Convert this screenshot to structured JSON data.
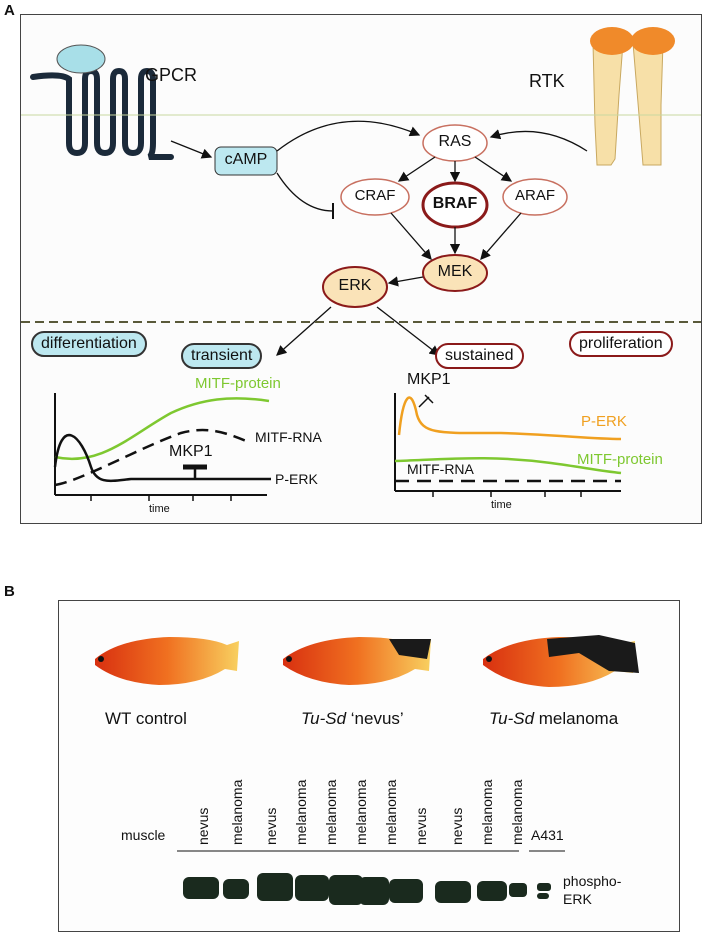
{
  "panelA": {
    "letter": "A",
    "gpcr": "GPCR",
    "rtk": "RTK",
    "camp": "cAMP",
    "ras": "RAS",
    "craf": "CRAF",
    "braf": "BRAF",
    "araf": "ARAF",
    "mek": "MEK",
    "erk": "ERK",
    "differentiation": "differentiation",
    "transient": "transient",
    "sustained": "sustained",
    "proliferation": "proliferation",
    "left_plot": {
      "mitf_protein": "MITF-protein",
      "mitf_rna": "MITF-RNA",
      "mkp1": "MKP1",
      "perk": "P-ERK",
      "xlabel": "time"
    },
    "right_plot": {
      "mkp1": "MKP1",
      "perk": "P-ERK",
      "mitf_protein": "MITF-protein",
      "mitf_rna": "MITF-RNA",
      "xlabel": "time"
    },
    "colors": {
      "green": "#7ec830",
      "orange": "#f0a020",
      "dark_red": "#8b1a1a",
      "light_blue": "#bde8f0"
    }
  },
  "panelB": {
    "letter": "B",
    "fish_labels": {
      "wt": "WT control",
      "nevus_italic": "Tu-Sd",
      "nevus_rest": " ‘nevus’",
      "melanoma_italic": "Tu-Sd",
      "melanoma_rest": " melanoma"
    },
    "muscle": "muscle",
    "a431": "A431",
    "lanes": [
      "nevus",
      "melanoma",
      "nevus",
      "melanoma",
      "melanoma",
      "melanoma",
      "melanoma",
      "nevus",
      "nevus",
      "melanoma",
      "melanoma"
    ],
    "blot_label_1": "phospho-",
    "blot_label_2": "ERK"
  }
}
